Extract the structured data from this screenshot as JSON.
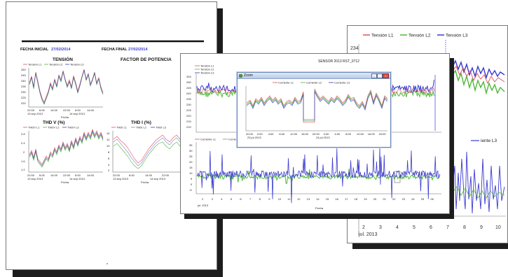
{
  "report": {
    "start_label": "FECHA INICIAL",
    "start_value": "27/02/2014",
    "end_label": "FECHA FINAL",
    "end_value": "27/02/2014",
    "tension": {
      "title": "TENSIÓN",
      "legend": [
        "Tensión L1",
        "Tensión L2",
        "Tensión L3"
      ],
      "yticks": [
        "250",
        "245",
        "240",
        "235",
        "230",
        "225",
        "220"
      ],
      "xticks": [
        "22:00",
        "6:00",
        "14:00",
        "22:00",
        "6:00",
        "14:00"
      ],
      "date_left": "13 sep 2013",
      "date_right": "14 sep 2013",
      "xlabel": "Fecha"
    },
    "power_factor": {
      "title": "FACTOR DE POTENCIA"
    },
    "thdv": {
      "title": "THD V (%)",
      "legend": [
        "THDV L1",
        "THDV L2",
        "THDV L3"
      ],
      "yticks": [
        "2.8",
        "2.4",
        "2",
        "1.6",
        "1.2"
      ],
      "xticks": [
        "22:00",
        "6:00",
        "14:00",
        "22:00",
        "6:00",
        "14:00"
      ],
      "date_left": "13 sep 2013",
      "date_right": "14 sep 2013",
      "xlabel": "Fecha"
    },
    "thdi": {
      "title": "THD I (%)",
      "legend": [
        "THDI L1",
        "THDI L2",
        "THDI L3"
      ],
      "yticks": [
        "14",
        "12",
        "10",
        "8",
        "6",
        "4",
        "2"
      ],
      "xticks": [
        "22:00",
        "6:00",
        "14:00",
        "22:00"
      ],
      "date_left": "13 sep 2013",
      "date_right": "14 sep 2013",
      "xlabel": "Fecha"
    }
  },
  "middle": {
    "title": "SENSOR 2013 RST_0712",
    "top_legend": [
      "Tensión L1",
      "Tensión L2",
      "Tensión L3"
    ],
    "top_yticks": [
      "254",
      "250",
      "245",
      "240",
      "235",
      "230",
      "225",
      "220",
      "215",
      "210"
    ],
    "bottom_legend": [
      "Corriente L1",
      "Corriente L2",
      "Corriente L3"
    ],
    "bottom_yticks": [
      "35",
      "30",
      "25",
      "20",
      "15",
      "10",
      "5",
      "0",
      "-5"
    ],
    "xticks": [
      "2",
      "3",
      "4",
      "5",
      "6",
      "7",
      "8",
      "9",
      "10",
      "11",
      "12",
      "13",
      "14",
      "15",
      "16",
      "17",
      "18",
      "19",
      "20",
      "21",
      "22",
      "23",
      "24",
      "25",
      "26"
    ],
    "month_label": "jul. 2013",
    "xlabel": "Fecha",
    "zoom_window": {
      "title": "Zoom",
      "legend": [
        "Corriente L1",
        "Corriente L2",
        "Corriente L3"
      ],
      "xticks": [
        "20:00",
        "0:00",
        "4:00",
        "8:00",
        "12:00",
        "16:00",
        "20:00",
        "0:00",
        "4:00",
        "8:00",
        "12:00",
        "16:00",
        "20:00"
      ],
      "date_left": "23 jul 2013",
      "date_right": "24 jul 2013"
    }
  },
  "back": {
    "legend": [
      "Tensión L1",
      "Tensión L2",
      "Tensión L3"
    ],
    "ytick_top": "234",
    "bottom_legend_fragment": "iente L3",
    "xticks": [
      "2",
      "3",
      "4",
      "5",
      "6",
      "7",
      "8",
      "9",
      "10"
    ],
    "month_label": "jul. 2013"
  },
  "colors": {
    "l1": "#e0505a",
    "l2": "#4fb83a",
    "l3": "#3a3acf",
    "shadow": "#1d1d1d"
  }
}
